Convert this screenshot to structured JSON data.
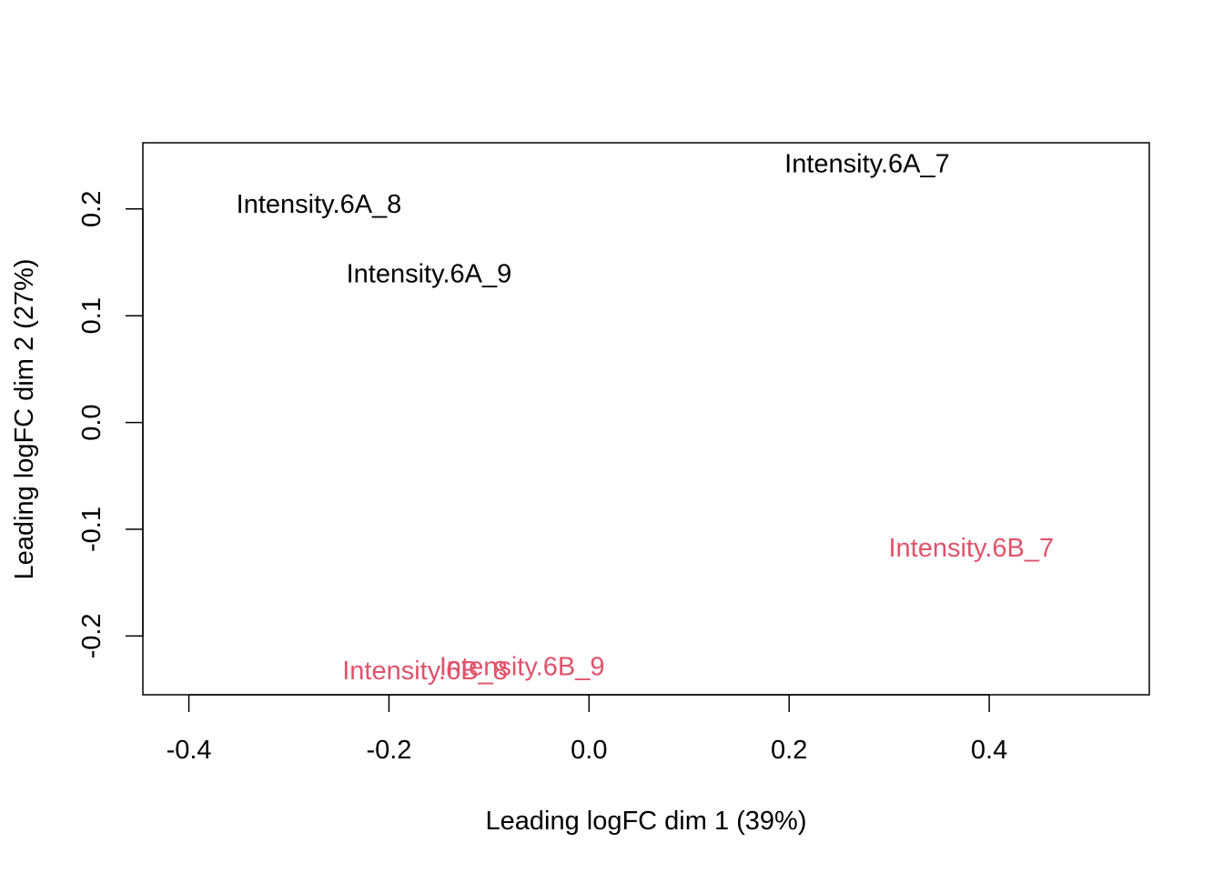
{
  "chart_data": {
    "type": "scatter",
    "title": "",
    "xlabel": "Leading logFC dim 1 (39%)",
    "ylabel": "Leading logFC dim 2 (27%)",
    "xlim": [
      -0.446,
      0.56
    ],
    "ylim": [
      -0.255,
      0.262
    ],
    "xticks": [
      -0.4,
      -0.2,
      0.0,
      0.2,
      0.4
    ],
    "xtick_labels": [
      "-0.4",
      "-0.2",
      "0.0",
      "0.2",
      "0.4"
    ],
    "yticks": [
      -0.2,
      -0.1,
      0.0,
      0.1,
      0.2
    ],
    "ytick_labels": [
      "-0.2",
      "-0.1",
      "0.0",
      "0.1",
      "0.2"
    ],
    "grid": false,
    "points": [
      {
        "label": "Intensity.6A_7",
        "x": 0.278,
        "y": 0.242,
        "color": "#000000"
      },
      {
        "label": "Intensity.6A_8",
        "x": -0.27,
        "y": 0.204,
        "color": "#000000"
      },
      {
        "label": "Intensity.6A_9",
        "x": -0.16,
        "y": 0.139,
        "color": "#000000"
      },
      {
        "label": "Intensity.6B_7",
        "x": 0.382,
        "y": -0.118,
        "color": "#DF536B"
      },
      {
        "label": "Intensity.6B_8",
        "x": -0.164,
        "y": -0.233,
        "color": "#DF536B"
      },
      {
        "label": "Intensity.6B_9",
        "x": -0.067,
        "y": -0.229,
        "color": "#DF536B"
      }
    ]
  }
}
